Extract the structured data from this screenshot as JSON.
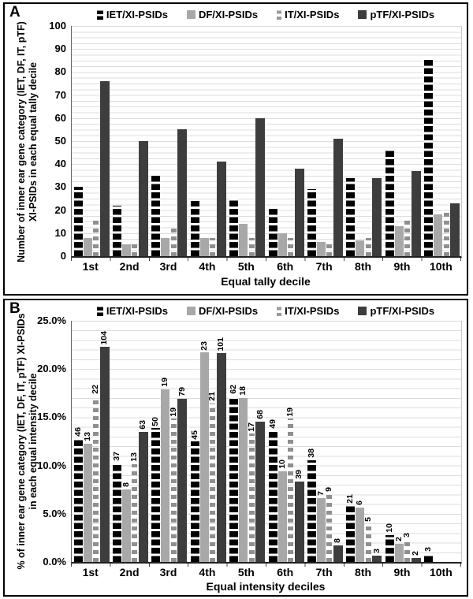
{
  "legend": {
    "items": [
      {
        "key": "iet",
        "label": "IET/XI-PSIDs"
      },
      {
        "key": "df",
        "label": "DF/XI-PSIDs"
      },
      {
        "key": "it",
        "label": "IT/XI-PSIDs"
      },
      {
        "key": "ptf",
        "label": "pTF/XI-PSIDs"
      }
    ]
  },
  "colors": {
    "iet": "#000000",
    "df": "#a8a8a8",
    "it": "#8f8f8f",
    "ptf": "#3d3d3d",
    "gridline": "#dcdcdc"
  },
  "panel_a": {
    "label": "A",
    "y_axis": {
      "title_line1": "Number of inner ear gene category (IET, DF, IT, pTF)",
      "title_line2": "XI-PSIDs in each equal tally decile",
      "tick_labels": [
        "100",
        "90",
        "80",
        "70",
        "60",
        "50",
        "40",
        "30",
        "20",
        "10",
        "0"
      ],
      "tick_values": [
        100,
        90,
        80,
        70,
        60,
        50,
        40,
        30,
        20,
        10,
        0
      ]
    },
    "x_axis": {
      "title": "Equal tally decile"
    }
  },
  "panel_b": {
    "label": "B",
    "y_axis": {
      "title_line1": "% of inner ear gene category (IET, DF, IT, pTF) XI-PSIDs",
      "title_line2": "in each equal intensity decile",
      "tick_labels": [
        "25.0%",
        "20.0%",
        "15.0%",
        "10.0%",
        "5.0%",
        "0.0%"
      ],
      "tick_values": [
        25,
        20,
        15,
        10,
        5,
        0
      ]
    },
    "x_axis": {
      "title": "Equal intensity deciles"
    }
  },
  "chart_data": [
    {
      "type": "bar",
      "panel": "A",
      "title": "",
      "xlabel": "Equal tally decile",
      "ylabel": "Number of inner ear gene category (IET, DF, IT, pTF) XI-PSIDs in each equal tally decile",
      "ylim": [
        0,
        100
      ],
      "grid": true,
      "legend_position": "top",
      "categories": [
        "1st",
        "2nd",
        "3rd",
        "4th",
        "5th",
        "6th",
        "7th",
        "8th",
        "9th",
        "10th"
      ],
      "series": [
        {
          "name": "IET/XI-PSIDs",
          "key": "iet",
          "values": [
            30,
            22,
            36,
            24,
            25,
            21,
            29,
            34,
            46,
            86
          ]
        },
        {
          "name": "DF/XI-PSIDs",
          "key": "df",
          "values": [
            8,
            5,
            8,
            8,
            14,
            10,
            6,
            7,
            13,
            18
          ]
        },
        {
          "name": "IT/XI-PSIDs",
          "key": "it",
          "values": [
            17,
            5,
            13,
            8,
            8,
            8,
            7,
            8,
            17,
            20
          ]
        },
        {
          "name": "pTF/XI-PSIDs",
          "key": "ptf",
          "values": [
            76,
            50,
            55,
            41,
            60,
            38,
            51,
            34,
            37,
            23
          ]
        }
      ]
    },
    {
      "type": "bar",
      "panel": "B",
      "title": "",
      "xlabel": "Equal intensity deciles",
      "ylabel": "% of inner ear gene category (IET, DF, IT, pTF) XI-PSIDs in each equal intensity decile",
      "ylim": [
        0,
        25
      ],
      "grid": true,
      "legend_position": "top",
      "bar_labels": "counts",
      "categories": [
        "1st",
        "2nd",
        "3rd",
        "4th",
        "5th",
        "6th",
        "7th",
        "8th",
        "9th",
        "10th"
      ],
      "series": [
        {
          "name": "IET/XI-PSIDs",
          "key": "iet",
          "counts": [
            46,
            37,
            50,
            45,
            62,
            49,
            38,
            21,
            10,
            3
          ],
          "values_pct": [
            12.74,
            10.25,
            13.85,
            12.47,
            17.17,
            13.57,
            10.53,
            5.82,
            2.77,
            0.83
          ]
        },
        {
          "name": "DF/XI-PSIDs",
          "key": "df",
          "counts": [
            13,
            8,
            19,
            23,
            18,
            10,
            7,
            6,
            2,
            0
          ],
          "values_pct": [
            12.26,
            7.55,
            17.92,
            21.7,
            16.98,
            9.43,
            6.6,
            5.66,
            1.89,
            0
          ]
        },
        {
          "name": "IT/XI-PSIDs",
          "key": "it",
          "counts": [
            22,
            13,
            19,
            21,
            17,
            19,
            9,
            5,
            3,
            0
          ],
          "values_pct": [
            17.19,
            10.16,
            14.84,
            16.41,
            13.28,
            14.84,
            7.03,
            3.91,
            2.34,
            0
          ]
        },
        {
          "name": "pTF/XI-PSIDs",
          "key": "ptf",
          "counts": [
            104,
            63,
            79,
            101,
            68,
            39,
            8,
            3,
            2,
            0
          ],
          "values_pct": [
            22.27,
            13.49,
            16.92,
            21.63,
            14.56,
            8.35,
            1.71,
            0.64,
            0.43,
            0
          ]
        }
      ]
    }
  ]
}
